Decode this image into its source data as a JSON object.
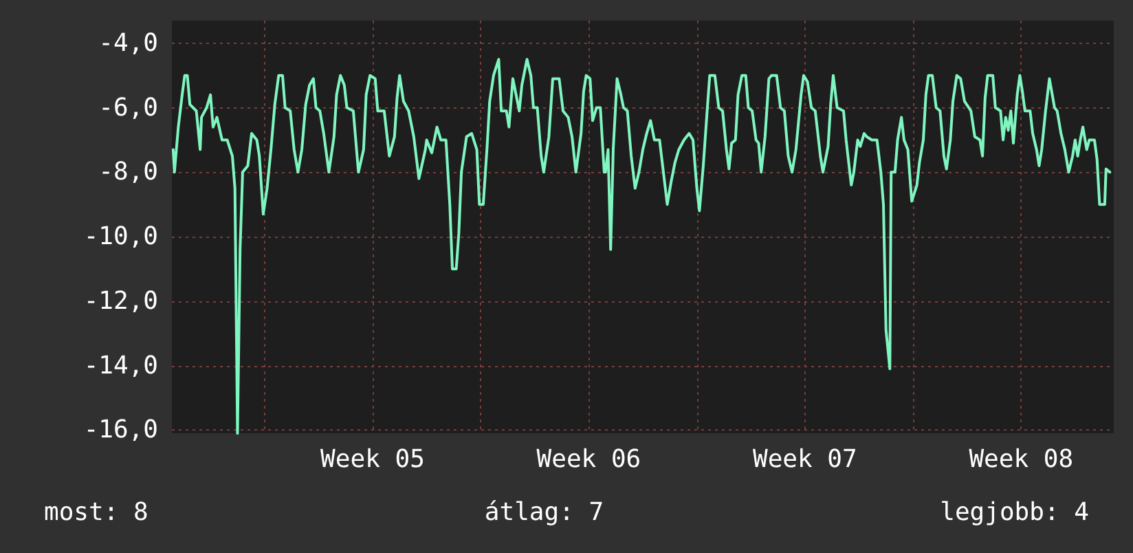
{
  "chart_data": {
    "type": "line",
    "xlim": [
      "--01-24T00:00",
      "--02-23T12:00"
    ],
    "xticks": [
      {
        "value": "--01-27T00:00",
        "label": null
      },
      {
        "value": "--01-30T12:00",
        "label": "Week 05"
      },
      {
        "value": "--02-03T00:00",
        "label": null
      },
      {
        "value": "--02-06T12:00",
        "label": "Week 06"
      },
      {
        "value": "--02-10T00:00",
        "label": null
      },
      {
        "value": "--02-13T12:00",
        "label": "Week 07"
      },
      {
        "value": "--02-17T00:00",
        "label": null
      },
      {
        "value": "--02-20T12:00",
        "label": "Week 08"
      }
    ],
    "ylim": [
      -16.1,
      -3.3
    ],
    "yticks": [
      {
        "value": -16,
        "label": "-16,0"
      },
      {
        "value": -14,
        "label": "-14,0"
      },
      {
        "value": -12,
        "label": "-12,0"
      },
      {
        "value": -10,
        "label": "-10,0"
      },
      {
        "value": -8,
        "label": "-8,0"
      },
      {
        "value": -6,
        "label": "-6,0"
      },
      {
        "value": -4,
        "label": "-4,0"
      }
    ],
    "grid": true,
    "marker": "none",
    "line_style": "solid",
    "annotations": [
      "most: 8",
      "átlag: 7",
      "legjobb: 4"
    ],
    "series": [
      {
        "color": "#7ff5c0",
        "x": [
          "--01-24T01:00",
          "--01-24T02:00",
          "--01-24T05:00",
          "--01-24T08:00",
          "--01-24T10:00",
          "--01-24T12:00",
          "--01-24T14:00",
          "--01-24T19:00",
          "--01-24T22:00",
          "--01-24T23:00",
          "--01-25T03:00",
          "--01-25T06:00",
          "--01-25T08:00",
          "--01-25T11:00",
          "--01-25T15:00",
          "--01-25T19:00",
          "--01-25T23:00",
          "--01-26T01:00",
          "--01-26T03:00",
          "--01-26T05:00",
          "--01-26T07:00",
          "--01-26T11:00",
          "--01-26T14:00",
          "--01-26T18:00",
          "--01-26T20:00",
          "--01-26T23:00",
          "--01-27T02:00",
          "--01-27T05:00",
          "--01-27T08:00",
          "--01-27T11:00",
          "--01-27T14:00",
          "--01-27T16:00",
          "--01-27T20:00",
          "--01-27T23:00",
          "--01-28T02:00",
          "--01-28T05:00",
          "--01-28T08:00",
          "--01-28T11:00",
          "--01-28T14:00",
          "--01-28T16:00",
          "--01-28T19:00",
          "--01-28T22:00",
          "--01-29T02:00",
          "--01-29T06:00",
          "--01-29T08:00",
          "--01-29T11:00",
          "--01-29T14:00",
          "--01-29T16:00",
          "--01-29T21:00",
          "--01-30T01:00",
          "--01-30T05:00",
          "--01-30T07:00",
          "--01-30T10:00",
          "--01-30T14:00",
          "--01-30T16:00",
          "--01-30T21:00",
          "--01-31T01:00",
          "--01-31T05:00",
          "--01-31T07:00",
          "--01-31T09:00",
          "--01-31T12:00",
          "--01-31T16:00",
          "--01-31T20:00",
          "--02-01T00:00",
          "--02-01T05:00",
          "--02-01T06:00",
          "--02-01T10:00",
          "--02-01T14:00",
          "--02-01T17:00",
          "--02-01T21:00",
          "--02-02T00:00",
          "--02-02T02:00",
          "--02-02T05:00",
          "--02-02T07:00",
          "--02-02T09:00",
          "--02-02T13:00",
          "--02-02T17:00",
          "--02-02T21:00",
          "--02-02T23:00",
          "--02-03T02:00",
          "--02-03T05:00",
          "--02-03T07:00",
          "--02-03T10:00",
          "--02-03T14:00",
          "--02-03T16:00",
          "--02-03T20:00",
          "--02-03T22:00",
          "--02-04T01:00",
          "--02-04T06:00",
          "--02-04T08:00",
          "--02-04T12:00",
          "--02-04T15:00",
          "--02-04T17:00",
          "--02-04T20:00",
          "--02-04T23:00",
          "--02-05T01:00",
          "--02-05T05:00",
          "--02-05T08:00",
          "--02-05T13:00",
          "--02-05T16:00",
          "--02-05T20:00",
          "--02-05T23:00",
          "--02-06T02:00",
          "--02-06T06:00",
          "--02-06T08:00",
          "--02-06T10:00",
          "--02-06T13:00",
          "--02-06T15:00",
          "--02-06T18:00",
          "--02-06T21:00",
          "--02-07T00:00",
          "--02-07T01:00",
          "--02-07T03:00",
          "--02-07T05:00",
          "--02-07T07:00",
          "--02-07T10:00",
          "--02-07T13:00",
          "--02-07T15:00",
          "--02-07T18:00",
          "--02-07T21:00",
          "--02-08T00:00",
          "--02-08T03:00",
          "--02-08T06:00",
          "--02-08T09:00",
          "--02-08T12:00",
          "--02-08T15:00",
          "--02-08T19:00",
          "--02-08T22:00",
          "--02-09T01:00",
          "--02-09T04:00",
          "--02-09T07:00",
          "--02-09T10:00",
          "--02-09T14:00",
          "--02-09T18:00",
          "--02-09T21:00",
          "--02-10T00:00",
          "--02-10T02:00",
          "--02-10T05:00",
          "--02-10T08:00",
          "--02-10T10:00",
          "--02-10T14:00",
          "--02-10T17:00",
          "--02-10T20:00",
          "--02-10T23:00",
          "--02-11T01:00",
          "--02-11T03:00",
          "--02-11T06:00",
          "--02-11T08:00",
          "--02-11T11:00",
          "--02-11T14:00",
          "--02-11T16:00",
          "--02-11T19:00",
          "--02-11T22:00",
          "--02-12T00:00",
          "--02-12T02:00",
          "--02-12T05:00",
          "--02-12T08:00",
          "--02-12T10:00",
          "--02-12T14:00",
          "--02-12T17:00",
          "--02-12T20:00",
          "--02-12T23:00",
          "--02-13T02:00",
          "--02-13T05:00",
          "--02-13T09:00",
          "--02-13T11:00",
          "--02-13T14:00",
          "--02-13T17:00",
          "--02-13T20:00",
          "--02-14T00:00",
          "--02-14T02:00",
          "--02-14T06:00",
          "--02-14T08:00",
          "--02-14T10:00",
          "--02-14T13:00",
          "--02-14T18:00",
          "--02-14T20:00",
          "--02-15T00:00",
          "--02-15T02:00",
          "--02-15T05:00",
          "--02-15T07:00",
          "--02-15T10:00",
          "--02-15T12:00",
          "--02-15T16:00",
          "--02-15T20:00",
          "--02-15T23:00",
          "--02-16T01:00",
          "--02-16T03:00",
          "--02-16T06:00",
          "--02-16T07:00",
          "--02-16T10:00",
          "--02-16T12:00",
          "--02-16T15:00",
          "--02-16T17:00",
          "--02-16T20:00",
          "--02-16T23:00",
          "--02-17T03:00",
          "--02-17T05:00",
          "--02-17T08:00",
          "--02-17T10:00",
          "--02-17T12:00",
          "--02-17T15:00",
          "--02-17T18:00",
          "--02-17T21:00",
          "--02-18T00:00",
          "--02-18T02:00",
          "--02-18T05:00",
          "--02-18T07:00",
          "--02-18T10:00",
          "--02-18T13:00",
          "--02-18T16:00",
          "--02-18T21:00",
          "--02-19T00:00",
          "--02-19T04:00",
          "--02-19T06:00",
          "--02-19T08:00",
          "--02-19T10:00",
          "--02-19T14:00",
          "--02-19T16:00",
          "--02-19T20:00",
          "--02-19T22:00",
          "--02-20T00:00",
          "--02-20T02:00",
          "--02-20T04:00",
          "--02-20T06:00",
          "--02-20T09:00",
          "--02-20T11:00",
          "--02-20T13:00",
          "--02-20T15:00",
          "--02-20T19:00",
          "--02-20T21:00",
          "--02-21T00:00",
          "--02-21T02:00",
          "--02-21T04:00",
          "--02-21T07:00",
          "--02-21T10:00",
          "--02-21T14:00",
          "--02-21T16:00",
          "--02-21T19:00",
          "--02-21T22:00",
          "--02-22T01:00",
          "--02-22T04:00",
          "--02-22T06:00",
          "--02-22T08:00",
          "--02-22T10:00",
          "--02-22T12:00",
          "--02-22T15:00",
          "--02-22T17:00",
          "--02-22T21:00",
          "--02-22T23:00",
          "--02-23T01:00",
          "--02-23T05:00",
          "--02-23T06:00",
          "--02-23T09:00"
        ],
        "values": [
          -7.3,
          -8.0,
          -6.6,
          -5.6,
          -5.0,
          -5.0,
          -5.9,
          -6.1,
          -7.3,
          -6.3,
          -6.0,
          -5.6,
          -6.6,
          -6.3,
          -7.0,
          -7.0,
          -7.5,
          -8.5,
          -16.1,
          -10.4,
          -8.0,
          -7.8,
          -6.8,
          -7.0,
          -7.5,
          -9.3,
          -8.5,
          -7.3,
          -5.9,
          -5.0,
          -5.0,
          -6.0,
          -6.1,
          -7.3,
          -8.0,
          -7.3,
          -5.9,
          -5.3,
          -5.1,
          -6.0,
          -6.1,
          -6.8,
          -8.0,
          -6.9,
          -5.6,
          -5.0,
          -5.3,
          -6.0,
          -6.1,
          -8.0,
          -7.3,
          -5.6,
          -5.0,
          -5.1,
          -6.1,
          -6.1,
          -7.5,
          -6.9,
          -5.7,
          -5.0,
          -5.8,
          -6.1,
          -6.9,
          -8.2,
          -7.3,
          -7.0,
          -7.4,
          -6.6,
          -7.0,
          -7.0,
          -9.0,
          -11.0,
          -11.0,
          -9.9,
          -8.0,
          -6.9,
          -6.8,
          -7.3,
          -9.0,
          -9.0,
          -7.2,
          -5.8,
          -5.0,
          -4.5,
          -6.1,
          -6.1,
          -6.6,
          -5.1,
          -6.1,
          -5.3,
          -4.5,
          -5.0,
          -6.0,
          -6.0,
          -7.5,
          -8.0,
          -6.9,
          -5.1,
          -5.1,
          -6.1,
          -6.3,
          -6.9,
          -8.0,
          -6.8,
          -5.5,
          -5.0,
          -5.1,
          -6.4,
          -6.0,
          -6.0,
          -8.0,
          -8.0,
          -7.3,
          -10.4,
          -7.3,
          -5.1,
          -5.6,
          -6.0,
          -6.1,
          -7.5,
          -8.5,
          -8.0,
          -7.3,
          -6.8,
          -6.4,
          -7.0,
          -7.0,
          -8.0,
          -9.0,
          -8.3,
          -7.7,
          -7.3,
          -7.0,
          -6.8,
          -7.0,
          -8.5,
          -9.2,
          -7.8,
          -6.1,
          -5.0,
          -5.0,
          -6.0,
          -6.1,
          -7.3,
          -7.9,
          -7.1,
          -7.0,
          -5.6,
          -5.0,
          -5.0,
          -6.0,
          -6.1,
          -7.0,
          -7.1,
          -8.0,
          -6.9,
          -5.1,
          -5.0,
          -5.0,
          -6.0,
          -6.1,
          -7.5,
          -8.0,
          -7.3,
          -5.6,
          -5.0,
          -5.2,
          -6.0,
          -6.1,
          -7.5,
          -8.0,
          -7.2,
          -5.9,
          -5.0,
          -6.0,
          -6.1,
          -7.0,
          -8.4,
          -8.0,
          -7.0,
          -7.2,
          -6.8,
          -6.9,
          -7.0,
          -7.0,
          -8.0,
          -9.0,
          -12.9,
          -14.1,
          -8.0,
          -8.0,
          -7.0,
          -6.3,
          -7.0,
          -7.3,
          -8.9,
          -8.4,
          -7.7,
          -7.0,
          -5.6,
          -5.0,
          -5.0,
          -6.0,
          -6.1,
          -7.5,
          -7.9,
          -7.0,
          -5.8,
          -5.0,
          -5.1,
          -5.8,
          -6.1,
          -6.9,
          -7.0,
          -7.5,
          -5.7,
          -5.0,
          -5.0,
          -6.0,
          -6.1,
          -7.0,
          -6.3,
          -6.7,
          -6.1,
          -7.1,
          -5.6,
          -5.0,
          -5.5,
          -6.1,
          -6.1,
          -6.8,
          -7.3,
          -7.8,
          -7.3,
          -6.1,
          -5.1,
          -6.0,
          -6.1,
          -6.8,
          -7.3,
          -8.0,
          -7.5,
          -7.0,
          -7.5,
          -7.0,
          -6.6,
          -7.3,
          -7.0,
          -7.0,
          -7.6,
          -9.0,
          -9.0,
          -7.9,
          -8.0
        ]
      }
    ]
  }
}
